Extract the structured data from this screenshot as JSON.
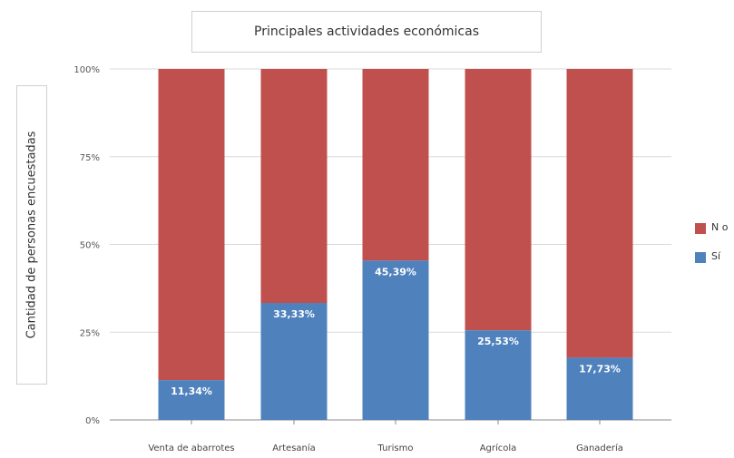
{
  "chart_data": {
    "type": "bar",
    "stacked": true,
    "title": "Principales actividades económicas",
    "ylabel": "Cantidad de personas encuestadas",
    "xlabel": "",
    "categories": [
      "Venta de abarrotes",
      "Artesanía",
      "Turismo",
      "Agrícola",
      "Ganadería"
    ],
    "series": [
      {
        "name": "Sí",
        "values": [
          11.34,
          33.33,
          45.39,
          25.53,
          17.73
        ],
        "color": "#4f81bd"
      },
      {
        "name": "No o",
        "values": [
          88.66,
          66.67,
          54.61,
          74.47,
          82.27
        ],
        "color": "#c0504d"
      }
    ],
    "data_labels": [
      "11,34%",
      "33,33%",
      "45,39%",
      "25,53%",
      "17,73%"
    ],
    "yticks": [
      "0%",
      "25%",
      "50%",
      "75%",
      "100%"
    ],
    "ylim": [
      0,
      100
    ],
    "legend_position": "right"
  },
  "legend": [
    {
      "label": "N o",
      "color": "#c0504d"
    },
    {
      "label": "Sí",
      "color": "#4f81bd"
    }
  ]
}
